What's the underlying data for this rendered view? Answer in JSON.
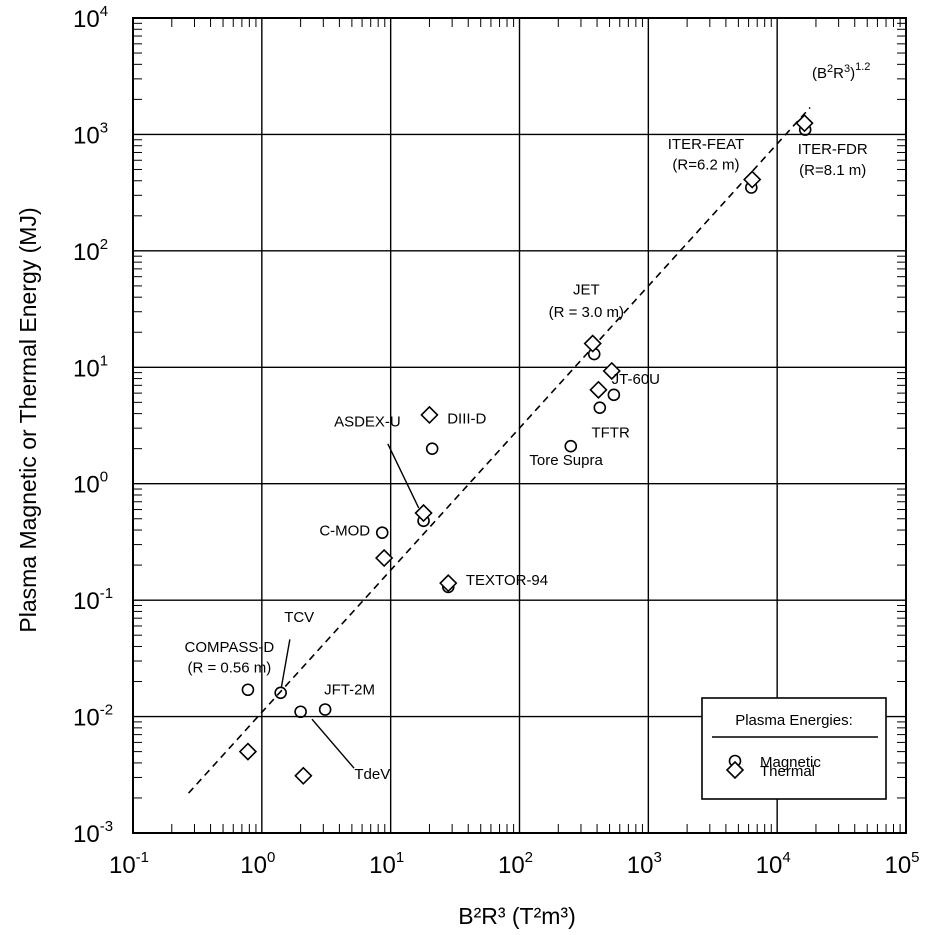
{
  "chart_data": {
    "type": "scatter",
    "xscale": "log",
    "yscale": "log",
    "xlim": [
      0.1,
      100000
    ],
    "ylim": [
      0.001,
      10000
    ],
    "grid": true,
    "xlabel": "B²R³ (T²m³)",
    "ylabel": "Plasma Magnetic or Thermal  Energy (MJ)",
    "x_ticks": [
      {
        "base": "10",
        "exp": "-1"
      },
      {
        "base": "10",
        "exp": "0"
      },
      {
        "base": "10",
        "exp": "1"
      },
      {
        "base": "10",
        "exp": "2"
      },
      {
        "base": "10",
        "exp": "3"
      },
      {
        "base": "10",
        "exp": "4"
      },
      {
        "base": "10",
        "exp": "5"
      }
    ],
    "y_ticks": [
      {
        "base": "10",
        "exp": "-3"
      },
      {
        "base": "10",
        "exp": "-2"
      },
      {
        "base": "10",
        "exp": "-1"
      },
      {
        "base": "10",
        "exp": "0"
      },
      {
        "base": "10",
        "exp": "1"
      },
      {
        "base": "10",
        "exp": "2"
      },
      {
        "base": "10",
        "exp": "3"
      },
      {
        "base": "10",
        "exp": "4"
      }
    ],
    "legend": {
      "title": "Plasma Energies:",
      "position": "bottom-right",
      "items": [
        "Magnetic",
        "Thermal"
      ]
    },
    "series": [
      {
        "name": "Magnetic",
        "marker": "circle",
        "points": [
          {
            "x": 0.78,
            "y": 0.017
          },
          {
            "x": 1.4,
            "y": 0.016
          },
          {
            "x": 2.0,
            "y": 0.011
          },
          {
            "x": 3.1,
            "y": 0.0115
          },
          {
            "x": 8.6,
            "y": 0.38
          },
          {
            "x": 18,
            "y": 0.48
          },
          {
            "x": 21,
            "y": 2.0
          },
          {
            "x": 28,
            "y": 0.13
          },
          {
            "x": 250,
            "y": 2.1
          },
          {
            "x": 380,
            "y": 13
          },
          {
            "x": 420,
            "y": 4.5
          },
          {
            "x": 540,
            "y": 5.8
          },
          {
            "x": 6300,
            "y": 350
          },
          {
            "x": 16500,
            "y": 1100
          }
        ]
      },
      {
        "name": "Thermal",
        "marker": "diamond",
        "points": [
          {
            "x": 0.78,
            "y": 0.005
          },
          {
            "x": 2.1,
            "y": 0.0031
          },
          {
            "x": 8.9,
            "y": 0.23
          },
          {
            "x": 18,
            "y": 0.56
          },
          {
            "x": 20,
            "y": 3.9
          },
          {
            "x": 28,
            "y": 0.14
          },
          {
            "x": 370,
            "y": 16
          },
          {
            "x": 410,
            "y": 6.4
          },
          {
            "x": 520,
            "y": 9.3
          },
          {
            "x": 6400,
            "y": 410
          },
          {
            "x": 16300,
            "y": 1250
          }
        ]
      }
    ],
    "fit_line": {
      "label_base": "(B",
      "label_sup1": "2",
      "label_mid": "R",
      "label_sup2": "3",
      "label_close": ")",
      "label_exp": "1.2",
      "x": [
        0.27,
        18000
      ],
      "y": [
        0.0022,
        1700
      ]
    },
    "annotations": [
      {
        "id": "compass-1",
        "text": "COMPASS-D",
        "x": 0.56,
        "y": 0.036
      },
      {
        "id": "compass-2",
        "text": "(R = 0.56 m)",
        "x": 0.56,
        "y": 0.024
      },
      {
        "id": "tcv",
        "text": "TCV",
        "x": 1.95,
        "y": 0.065
      },
      {
        "id": "jft",
        "text": "JFT-2M",
        "x": 4.8,
        "y": 0.0155
      },
      {
        "id": "tdev",
        "text": "TdeV",
        "x": 7.2,
        "y": 0.0029
      },
      {
        "id": "cmod",
        "text": "C-MOD",
        "x": 4.4,
        "y": 0.36
      },
      {
        "id": "asdex",
        "text": "ASDEX-U",
        "x": 6.6,
        "y": 3.1
      },
      {
        "id": "diiid",
        "text": "DIII-D",
        "x": 39,
        "y": 3.3
      },
      {
        "id": "textor",
        "text": "TEXTOR-94",
        "x": 80,
        "y": 0.135
      },
      {
        "id": "tore",
        "text": "Tore Supra",
        "x": 230,
        "y": 1.45
      },
      {
        "id": "tftr",
        "text": "TFTR",
        "x": 510,
        "y": 2.5
      },
      {
        "id": "jt60",
        "text": "JT-60U",
        "x": 800,
        "y": 7.2
      },
      {
        "id": "jet-1",
        "text": "JET",
        "x": 330,
        "y": 42
      },
      {
        "id": "jet-2",
        "text": "(R = 3.0 m)",
        "x": 330,
        "y": 27
      },
      {
        "id": "iterfeat-1",
        "text": "ITER-FEAT",
        "x": 2800,
        "y": 750
      },
      {
        "id": "iterfeat-2",
        "text": "(R=6.2 m)",
        "x": 2800,
        "y": 500
      },
      {
        "id": "iterfdr-1",
        "text": "ITER-FDR",
        "x": 27000,
        "y": 680
      },
      {
        "id": "iterfdr-2",
        "text": "(R=8.1 m)",
        "x": 27000,
        "y": 450
      }
    ],
    "leader_lines": [
      {
        "id": "tcv-leader",
        "x1": 1.65,
        "y1": 0.046,
        "x2": 1.42,
        "y2": 0.018
      },
      {
        "id": "tdev-leader",
        "x1": 5.2,
        "y1": 0.0036,
        "x2": 2.45,
        "y2": 0.0095
      },
      {
        "id": "asdex-leader",
        "x1": 9.5,
        "y1": 2.2,
        "x2": 16.5,
        "y2": 0.62
      }
    ]
  }
}
